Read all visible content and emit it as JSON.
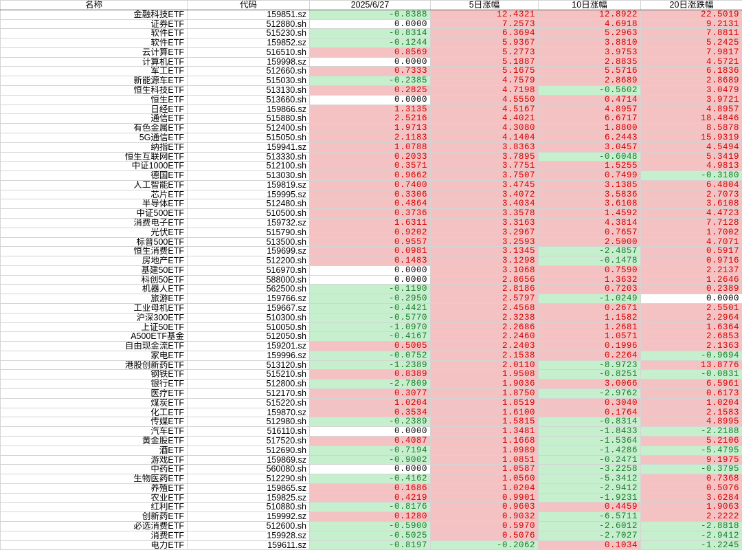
{
  "colors": {
    "pos_bg": "#f4c2c2",
    "pos_fg": "#d20000",
    "neg_bg": "#c6efce",
    "neg_fg": "#1a7a2a",
    "zero_bg": "#ffffff"
  },
  "headers": [
    "名称",
    "代码",
    "2025/6/27",
    "5日涨幅",
    "10日涨幅",
    "20日涨跌幅"
  ],
  "rows": [
    [
      "金融科技ETF",
      "159851.sz",
      "-0.8388",
      "12.4321",
      "12.8922",
      "22.5019"
    ],
    [
      "证券ETF",
      "512880.sh",
      "0.0000",
      "7.2573",
      "4.6918",
      "9.2131"
    ],
    [
      "软件ETF",
      "515230.sh",
      "-0.8314",
      "6.3694",
      "5.2963",
      "7.8811"
    ],
    [
      "软件ETF",
      "159852.sz",
      "-0.1244",
      "5.9367",
      "3.8810",
      "5.2425"
    ],
    [
      "云计算ETF",
      "516510.sh",
      "0.8569",
      "5.2773",
      "3.9753",
      "7.9817"
    ],
    [
      "计算机ETF",
      "159998.sz",
      "0.0000",
      "5.1887",
      "2.8835",
      "4.5721"
    ],
    [
      "军工ETF",
      "512660.sh",
      "0.7333",
      "5.1675",
      "5.5716",
      "6.1836"
    ],
    [
      "新能源车ETF",
      "515030.sh",
      "-0.2385",
      "4.7579",
      "2.8689",
      "2.8689"
    ],
    [
      "恒生科技ETF",
      "513130.sh",
      "0.2825",
      "4.7198",
      "-0.5602",
      "3.0479"
    ],
    [
      "恒生ETF",
      "513660.sh",
      "0.0000",
      "4.5550",
      "0.4714",
      "3.9721"
    ],
    [
      "日经ETF",
      "159866.sz",
      "1.3135",
      "4.5167",
      "4.8957",
      "4.8957"
    ],
    [
      "通信ETF",
      "515880.sh",
      "2.5216",
      "4.4021",
      "6.6717",
      "18.4846"
    ],
    [
      "有色金属ETF",
      "512400.sh",
      "1.9713",
      "4.3080",
      "1.8800",
      "8.5878"
    ],
    [
      "5G通信ETF",
      "515050.sh",
      "2.1183",
      "4.1404",
      "6.2443",
      "15.9319"
    ],
    [
      "纳指ETF",
      "159941.sz",
      "1.0788",
      "3.8363",
      "3.0457",
      "4.5494"
    ],
    [
      "恒生互联网ETF",
      "513330.sh",
      "0.2033",
      "3.7895",
      "-0.6048",
      "5.3419"
    ],
    [
      "中证1000ETF",
      "512100.sh",
      "0.3571",
      "3.7751",
      "1.5255",
      "4.9813"
    ],
    [
      "德国ETF",
      "513030.sh",
      "0.9662",
      "3.7507",
      "0.7499",
      "-0.3180"
    ],
    [
      "人工智能ETF",
      "159819.sz",
      "0.7400",
      "3.4745",
      "3.1385",
      "6.4804"
    ],
    [
      "芯片ETF",
      "159995.sz",
      "0.3306",
      "3.4072",
      "3.5836",
      "2.7073"
    ],
    [
      "半导体ETF",
      "512480.sh",
      "0.4864",
      "3.4034",
      "3.6108",
      "3.6108"
    ],
    [
      "中证500ETF",
      "510500.sh",
      "0.3736",
      "3.3578",
      "1.4592",
      "4.4723"
    ],
    [
      "消费电子ETF",
      "159732.sz",
      "1.6311",
      "3.3163",
      "4.3814",
      "7.7128"
    ],
    [
      "光伏ETF",
      "515790.sh",
      "0.9202",
      "3.2967",
      "0.7657",
      "1.7002"
    ],
    [
      "标普500ETF",
      "513500.sh",
      "0.9557",
      "3.2593",
      "2.5000",
      "4.7071"
    ],
    [
      "恒生消费ETF",
      "159699.sz",
      "0.0981",
      "3.1345",
      "-2.4857",
      "0.5917"
    ],
    [
      "房地产ETF",
      "512200.sh",
      "0.1483",
      "3.1298",
      "-0.1478",
      "0.9716"
    ],
    [
      "基建50ETF",
      "516970.sh",
      "0.0000",
      "3.1068",
      "0.7590",
      "2.2137"
    ],
    [
      "科创50ETF",
      "588000.sh",
      "0.0000",
      "2.8656",
      "1.3632",
      "1.2646"
    ],
    [
      "机器人ETF",
      "562500.sh",
      "-0.1190",
      "2.8186",
      "0.7203",
      "0.2389"
    ],
    [
      "旅游ETF",
      "159766.sz",
      "-0.2950",
      "2.5797",
      "-1.0249",
      "0.0000"
    ],
    [
      "工业母机ETF",
      "159667.sz",
      "-0.4421",
      "2.4568",
      "0.2671",
      "2.5501"
    ],
    [
      "沪深300ETF",
      "510300.sh",
      "-0.5770",
      "2.3238",
      "1.1582",
      "2.2964"
    ],
    [
      "上证50ETF",
      "510050.sh",
      "-1.0970",
      "2.2686",
      "1.2681",
      "1.6364"
    ],
    [
      "A500ETF基金",
      "512050.sh",
      "-0.4167",
      "2.2460",
      "1.0571",
      "2.6853"
    ],
    [
      "自由现金流ETF",
      "159201.sz",
      "0.5005",
      "2.2403",
      "0.1996",
      "2.1363"
    ],
    [
      "家电ETF",
      "159996.sz",
      "-0.0752",
      "2.1538",
      "0.2264",
      "-0.9694"
    ],
    [
      "港股创新药ETF",
      "513120.sh",
      "-1.2389",
      "2.0110",
      "-8.9723",
      "13.8776"
    ],
    [
      "钢铁ETF",
      "515210.sh",
      "0.8389",
      "1.9508",
      "-0.8251",
      "-0.0831"
    ],
    [
      "银行ETF",
      "512800.sh",
      "-2.7809",
      "1.9036",
      "3.0066",
      "6.5961"
    ],
    [
      "医疗ETF",
      "512170.sh",
      "0.3077",
      "1.8750",
      "-2.9762",
      "0.6173"
    ],
    [
      "煤炭ETF",
      "515220.sh",
      "1.0204",
      "1.8519",
      "0.3040",
      "1.0204"
    ],
    [
      "化工ETF",
      "159870.sz",
      "0.3534",
      "1.6100",
      "0.1764",
      "2.1583"
    ],
    [
      "传媒ETF",
      "512980.sh",
      "-0.2389",
      "1.5815",
      "-0.8314",
      "4.8995"
    ],
    [
      "汽车ETF",
      "516110.sh",
      "0.0000",
      "1.3481",
      "-1.8433",
      "-2.2188"
    ],
    [
      "黄金股ETF",
      "517520.sh",
      "0.4087",
      "1.1668",
      "-1.5364",
      "5.2106"
    ],
    [
      "酒ETF",
      "512690.sh",
      "-0.7194",
      "1.0989",
      "-1.4286",
      "-5.4795"
    ],
    [
      "游戏ETF",
      "159869.sz",
      "-0.9002",
      "1.0851",
      "-0.2471",
      "9.1975"
    ],
    [
      "中药ETF",
      "560080.sh",
      "0.0000",
      "1.0587",
      "-3.2258",
      "-0.3795"
    ],
    [
      "生物医药ETF",
      "512290.sh",
      "-0.4162",
      "1.0560",
      "-5.3412",
      "0.7368"
    ],
    [
      "养殖ETF",
      "159865.sz",
      "0.1686",
      "1.0204",
      "-2.9412",
      "0.5076"
    ],
    [
      "农业ETF",
      "159825.sz",
      "0.4219",
      "0.9901",
      "-1.9231",
      "3.6284"
    ],
    [
      "红利ETF",
      "510880.sh",
      "-0.8176",
      "0.9603",
      "0.4459",
      "1.9063"
    ],
    [
      "创新药ETF",
      "159992.sz",
      "0.1280",
      "0.9032",
      "-6.5711",
      "2.2222"
    ],
    [
      "必选消费ETF",
      "512600.sh",
      "-0.5900",
      "0.5970",
      "-2.6012",
      "-2.8818"
    ],
    [
      "消费ETF",
      "159928.sz",
      "-0.5025",
      "0.5076",
      "-2.7027",
      "-2.9412"
    ],
    [
      "电力ETF",
      "159611.sz",
      "-0.8197",
      "-0.2062",
      "0.1034",
      "-1.2245"
    ]
  ]
}
